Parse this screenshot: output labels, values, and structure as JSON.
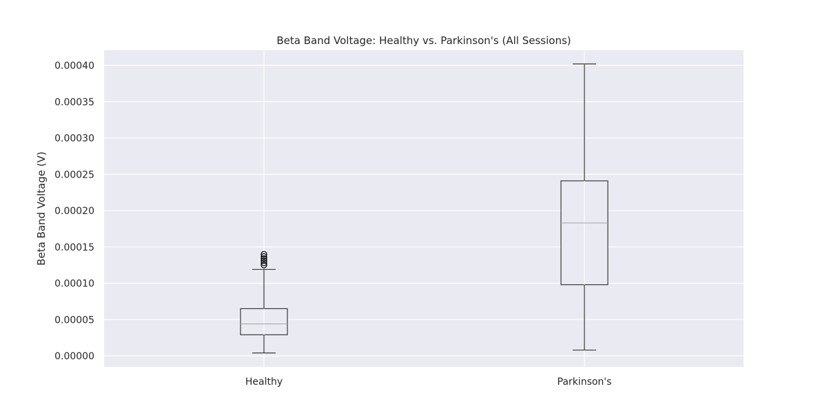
{
  "chart_data": {
    "type": "box",
    "title": "Beta Band Voltage: Healthy vs. Parkinson's (All Sessions)",
    "xlabel": "",
    "ylabel": "Beta Band Voltage (V)",
    "ylim": [
      -1.5e-05,
      0.00042
    ],
    "yticks": [
      0,
      5e-05,
      0.0001,
      0.00015,
      0.0002,
      0.00025,
      0.0003,
      0.00035,
      0.0004
    ],
    "ytick_labels": [
      "0.00000",
      "0.00005",
      "0.00010",
      "0.00015",
      "0.00020",
      "0.00025",
      "0.00030",
      "0.00035",
      "0.00040"
    ],
    "categories": [
      "Healthy",
      "Parkinson's"
    ],
    "grid": true,
    "boxes": [
      {
        "category": "Healthy",
        "whisker_low": 4e-06,
        "q1": 2.9e-05,
        "median": 4.4e-05,
        "q3": 6.5e-05,
        "whisker_high": 0.000119,
        "outliers": [
          0.000125,
          0.000128,
          0.000131,
          0.000134,
          0.000137,
          0.00014
        ]
      },
      {
        "category": "Parkinson's",
        "whisker_low": 8e-06,
        "q1": 9.8e-05,
        "median": 0.000183,
        "q3": 0.000241,
        "whisker_high": 0.000402,
        "outliers": []
      }
    ],
    "colors": {
      "plot_background": "#eaeaf2",
      "grid": "#ffffff",
      "box_edge": "#3a3a3a",
      "median": "#aaaaaa",
      "whisker": "#3a3a3a",
      "outlier": "#000000"
    }
  }
}
